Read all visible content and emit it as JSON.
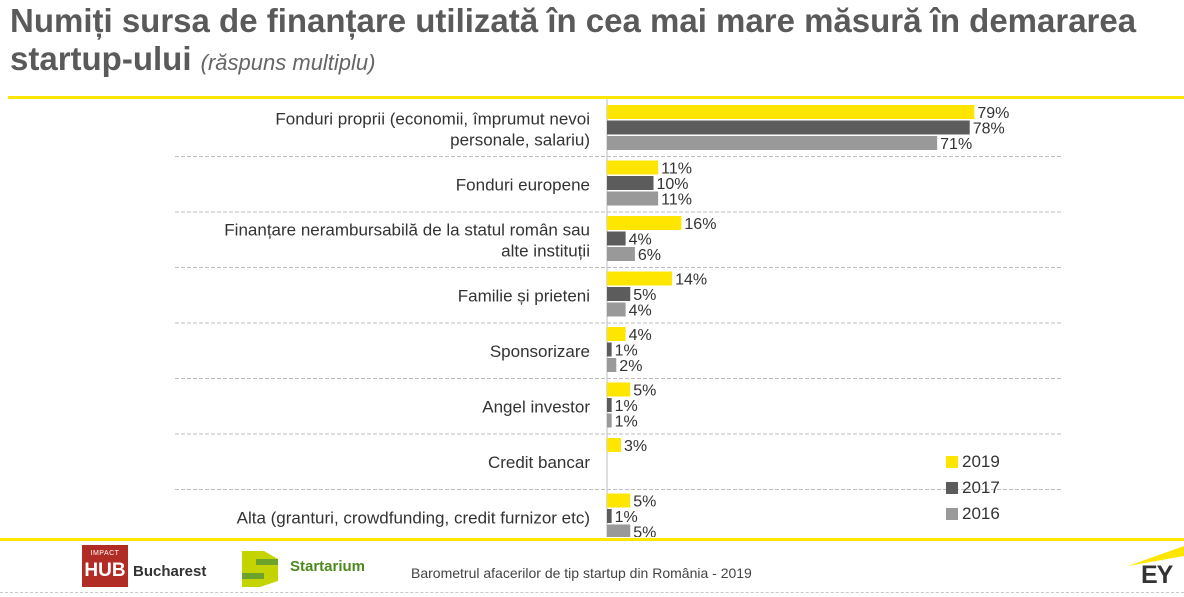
{
  "title": {
    "main": "Numiți sursa de finanțare utilizată în cea mai mare măsură în demararea startup-ului",
    "note": "(răspuns multiplu)"
  },
  "chart_data": {
    "type": "bar",
    "orientation": "horizontal",
    "categories": [
      [
        "Fonduri proprii (economii, împrumut nevoi",
        "personale, salariu)"
      ],
      [
        "Fonduri europene"
      ],
      [
        "Finanțare nerambursabilă de la statul român sau",
        "alte instituții"
      ],
      [
        "Familie și prieteni"
      ],
      [
        "Sponsorizare"
      ],
      [
        "Angel investor"
      ],
      [
        "Credit bancar"
      ],
      [
        "Alta (granturi, crowdfunding, credit furnizor etc)"
      ]
    ],
    "series": [
      {
        "name": "2019",
        "color": "#ffe600",
        "values": [
          79,
          11,
          16,
          14,
          4,
          5,
          3,
          5
        ]
      },
      {
        "name": "2017",
        "color": "#5c5c5c",
        "values": [
          78,
          10,
          4,
          5,
          1,
          1,
          null,
          1
        ]
      },
      {
        "name": "2016",
        "color": "#999999",
        "values": [
          71,
          11,
          6,
          4,
          2,
          1,
          null,
          5
        ]
      }
    ],
    "value_suffix": "%",
    "xlim": [
      0,
      100
    ],
    "legend_position": "bottom-right"
  },
  "footer": {
    "hub_small": "IMPACT",
    "hub_big": "HUB",
    "hub_city": "Bucharest",
    "startarium": "Startarium",
    "source": "Barometrul afacerilor de tip startup din România - 2019",
    "ey": "EY"
  }
}
